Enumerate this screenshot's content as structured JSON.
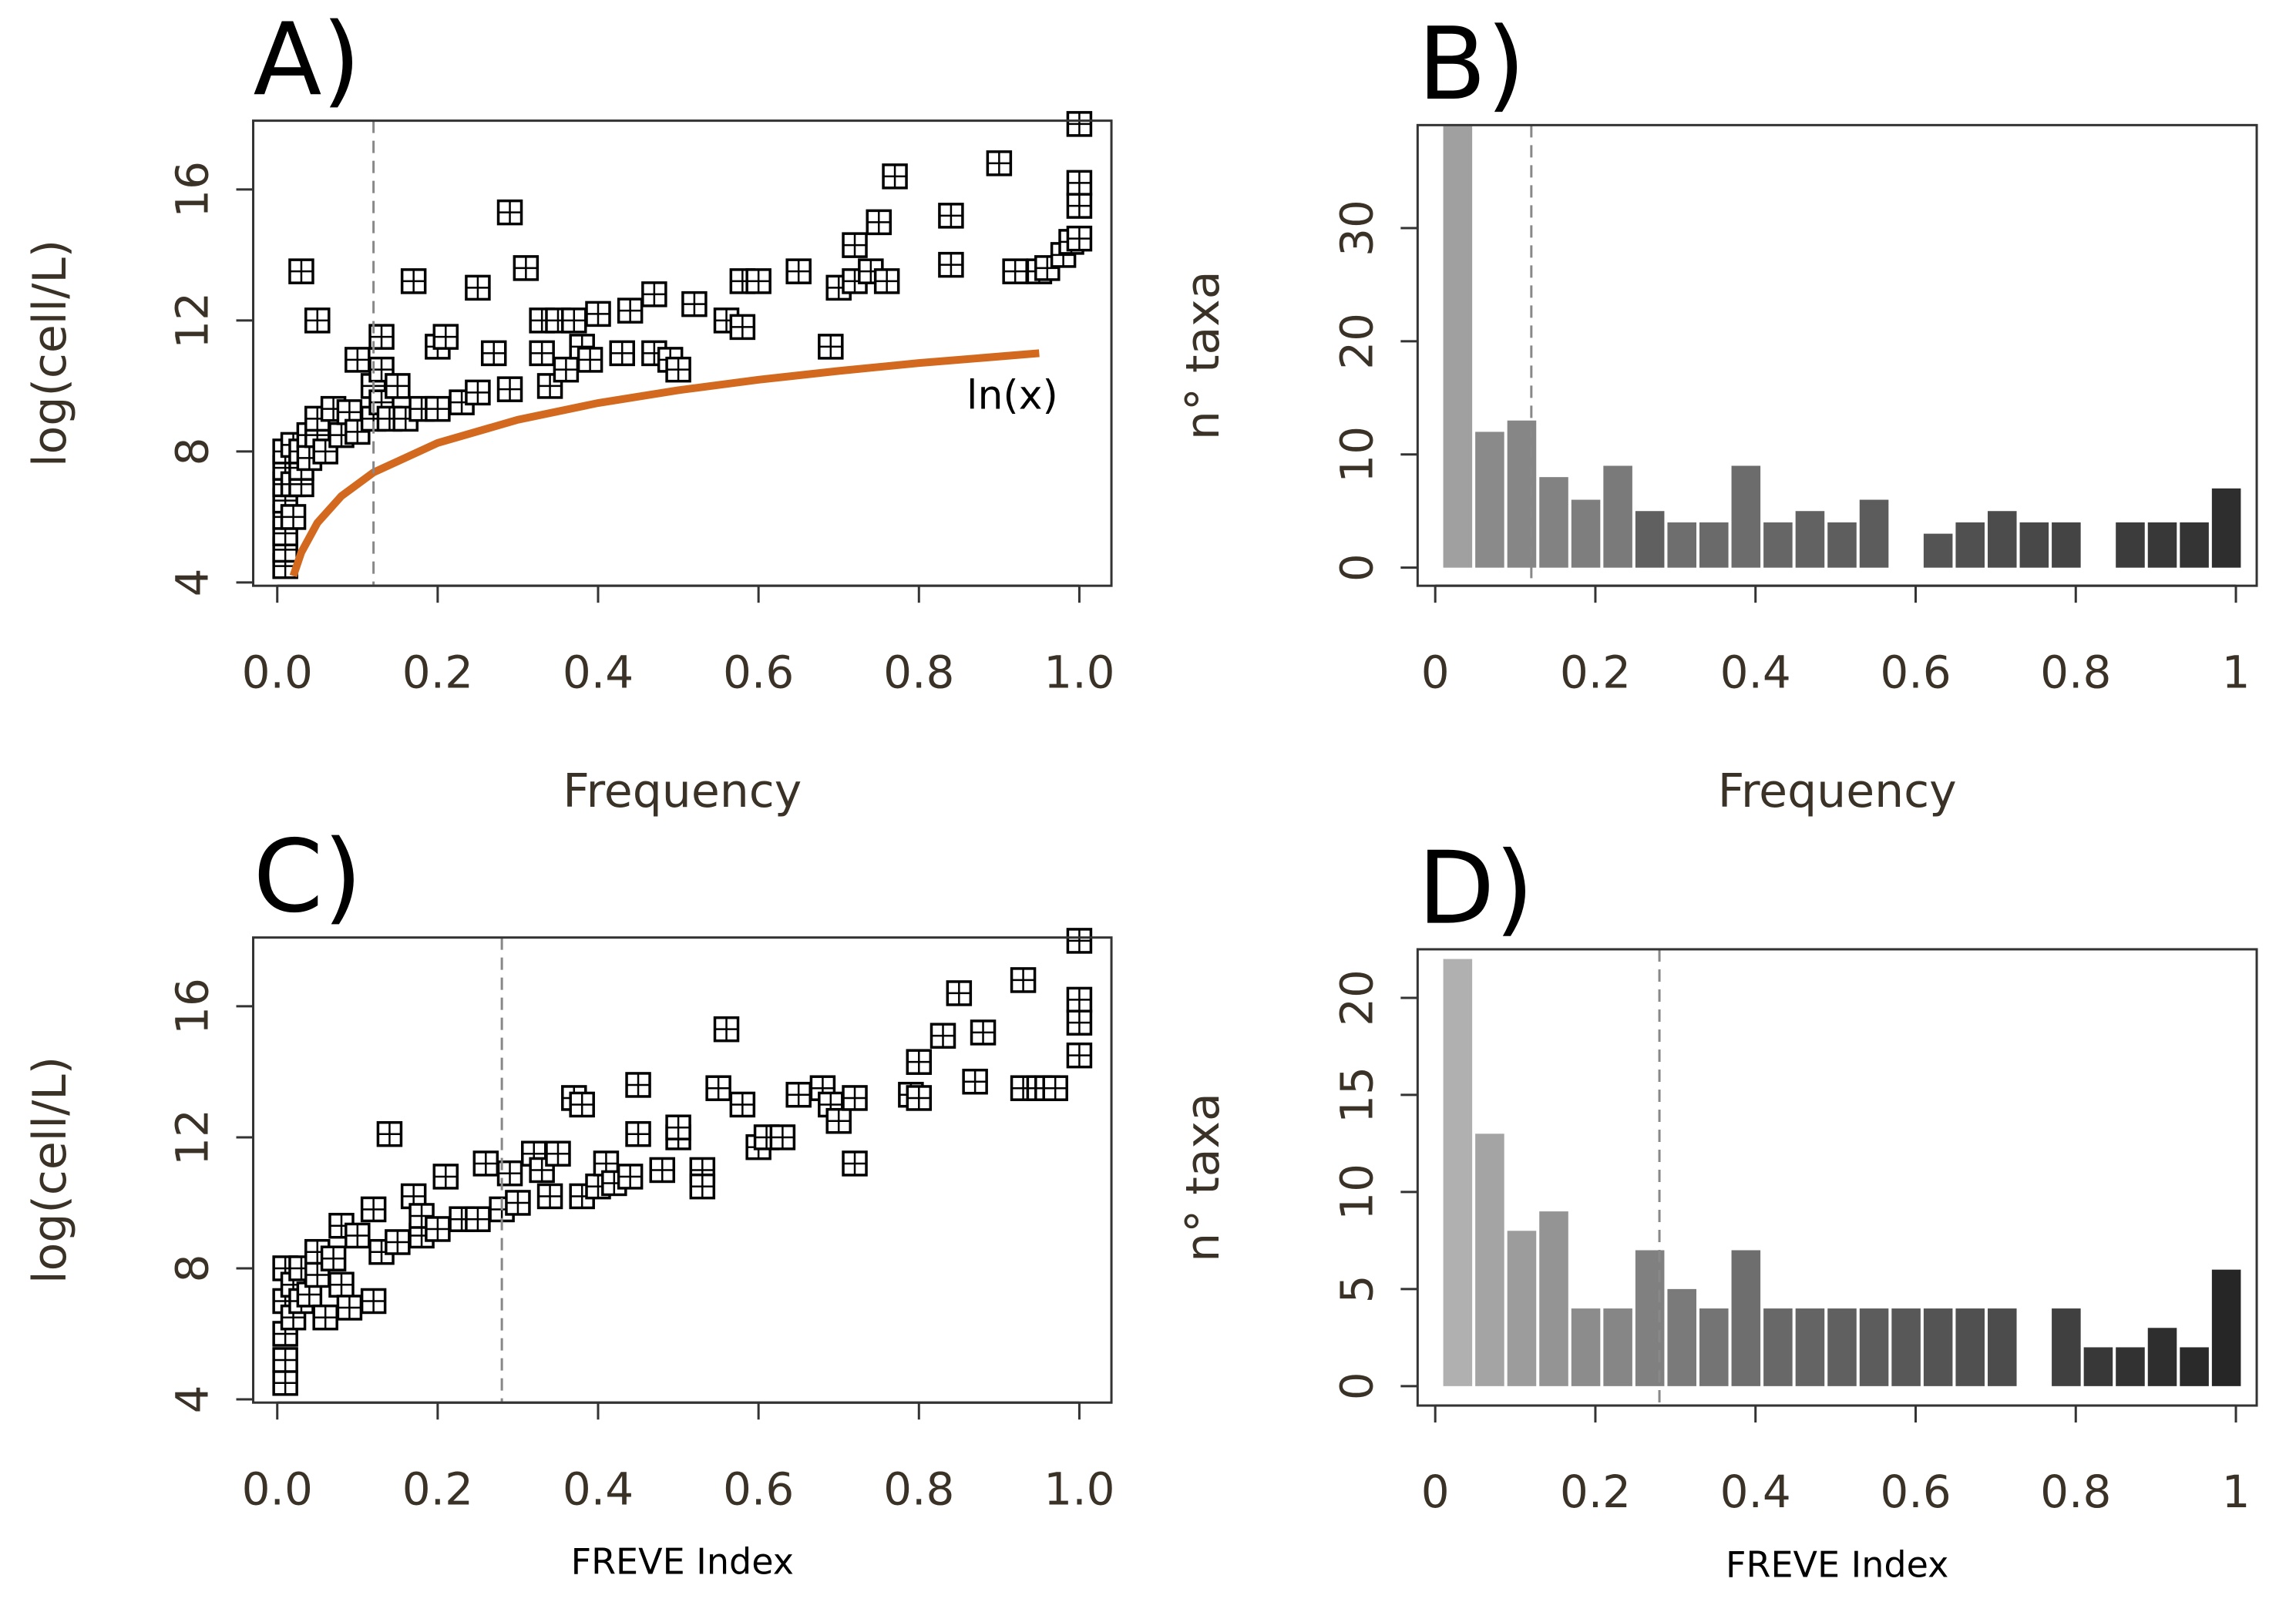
{
  "chart_data": [
    {
      "type": "scatter",
      "label": "A)",
      "xlabel": "Frequency",
      "ylabel": "log(cell/L)",
      "xlim": [
        -0.03,
        1.04
      ],
      "ylim": [
        3.9,
        18.1
      ],
      "xticks": [
        {
          "value": 0,
          "label": "0.0"
        },
        0.2,
        0.4,
        0.6,
        0.8,
        {
          "value": 1,
          "label": "1.0"
        }
      ],
      "yticks": [
        4,
        8,
        12,
        16
      ],
      "vline": 0.12,
      "color": "#000000",
      "x": [
        0.01,
        0.01,
        0.01,
        0.01,
        0.01,
        0.01,
        0.01,
        0.01,
        0.02,
        0.02,
        0.02,
        0.03,
        0.03,
        0.03,
        0.03,
        0.04,
        0.04,
        0.05,
        0.05,
        0.05,
        0.06,
        0.07,
        0.08,
        0.09,
        0.1,
        0.1,
        0.12,
        0.12,
        0.13,
        0.13,
        0.13,
        0.14,
        0.15,
        0.16,
        0.17,
        0.18,
        0.2,
        0.2,
        0.21,
        0.23,
        0.25,
        0.25,
        0.27,
        0.29,
        0.29,
        0.31,
        0.33,
        0.33,
        0.34,
        0.35,
        0.36,
        0.37,
        0.38,
        0.39,
        0.4,
        0.43,
        0.44,
        0.47,
        0.47,
        0.49,
        0.5,
        0.52,
        0.56,
        0.58,
        0.58,
        0.6,
        0.65,
        0.69,
        0.7,
        0.72,
        0.72,
        0.74,
        0.75,
        0.76,
        0.77,
        0.84,
        0.84,
        0.9,
        0.92,
        0.95,
        0.96,
        0.98,
        0.99,
        1.0,
        1.0,
        1.0,
        1.0
      ],
      "y": [
        4.5,
        5,
        5.5,
        6,
        6.5,
        7,
        7.5,
        8,
        6,
        7,
        8.2,
        7,
        7.5,
        8,
        13.5,
        8.5,
        7.8,
        8.5,
        9,
        12,
        8,
        9.3,
        8.5,
        9.2,
        8.6,
        10.8,
        9,
        10,
        11.5,
        10.5,
        9.5,
        9,
        10,
        9,
        13.2,
        9.3,
        9.3,
        11.2,
        11.5,
        9.5,
        9.8,
        13,
        11,
        15.3,
        9.9,
        13.6,
        12,
        11,
        10,
        12,
        10.5,
        12,
        11.2,
        10.8,
        12.2,
        11,
        12.3,
        12.8,
        11,
        10.8,
        10.5,
        12.5,
        12,
        13.2,
        11.8,
        13.2,
        13.5,
        11.2,
        13,
        14.3,
        13.2,
        13.5,
        15,
        13.2,
        16.4,
        13.7,
        15.2,
        16.8,
        13.5,
        13.5,
        13.6,
        14,
        14.4,
        18,
        16.2,
        15.5,
        14.5
      ],
      "line": {
        "color": "#d2691e",
        "annotation": "ln(x)",
        "x": [
          0.02,
          0.03,
          0.05,
          0.08,
          0.12,
          0.2,
          0.3,
          0.4,
          0.5,
          0.6,
          0.7,
          0.8,
          0.95
        ],
        "y": [
          4.2,
          4.92,
          5.82,
          6.64,
          7.36,
          8.26,
          8.97,
          9.48,
          9.87,
          10.19,
          10.46,
          10.7,
          11.0
        ]
      }
    },
    {
      "type": "histogram",
      "label": "B)",
      "xlabel": "Frequency",
      "ylabel": "n° taxa",
      "xlim": [
        -0.022,
        1.026
      ],
      "ylim": [
        -1.6,
        39.1
      ],
      "xticks": [
        0,
        0.2,
        0.4,
        0.6,
        0.8,
        1
      ],
      "yticks": [
        0,
        10,
        20,
        30
      ],
      "vline": 0.12,
      "bins": [
        0.01,
        0.05,
        0.09,
        0.13,
        0.17,
        0.21,
        0.25,
        0.29,
        0.33,
        0.37,
        0.41,
        0.45,
        0.49,
        0.53,
        0.57,
        0.61,
        0.65,
        0.69,
        0.73,
        0.77,
        0.81,
        0.85,
        0.89,
        0.93,
        0.97,
        1.01
      ],
      "counts": [
        39,
        12,
        13,
        8,
        6,
        9,
        5,
        4,
        4,
        9,
        4,
        5,
        4,
        6,
        0,
        3,
        4,
        5,
        4,
        4,
        0,
        4,
        4,
        4,
        7
      ],
      "colors": [
        "#a0a0a0",
        "#8a8a8a",
        "#868686",
        "#828282",
        "#7e7e7e",
        "#7a7a7a",
        "#606060",
        "#6e6e6e",
        "#6a6a6a",
        "#6c6c6c",
        "#666666",
        "#626262",
        "#5e5e5e",
        "#5c5c5c",
        "#585858",
        "#545454",
        "#505050",
        "#4c4c4c",
        "#484848",
        "#444444",
        "#404040",
        "#3c3c3c",
        "#383838",
        "#343434",
        "#2e2e2e"
      ]
    },
    {
      "type": "scatter",
      "label": "C)",
      "xlabel": "FREVE Index",
      "ylabel": "log(cell/L)",
      "xlim": [
        -0.03,
        1.04
      ],
      "ylim": [
        3.9,
        18.1
      ],
      "xticks": [
        {
          "value": 0,
          "label": "0.0"
        },
        0.2,
        0.4,
        0.6,
        0.8,
        {
          "value": 1,
          "label": "1.0"
        }
      ],
      "yticks": [
        4,
        8,
        12,
        16
      ],
      "vline": 0.28,
      "color": "#000000",
      "x": [
        0.01,
        0.01,
        0.01,
        0.01,
        0.01,
        0.02,
        0.02,
        0.03,
        0.03,
        0.04,
        0.05,
        0.05,
        0.06,
        0.07,
        0.08,
        0.08,
        0.09,
        0.1,
        0.12,
        0.12,
        0.13,
        0.14,
        0.15,
        0.17,
        0.18,
        0.18,
        0.2,
        0.21,
        0.23,
        0.25,
        0.26,
        0.28,
        0.29,
        0.3,
        0.32,
        0.33,
        0.34,
        0.35,
        0.37,
        0.38,
        0.38,
        0.4,
        0.41,
        0.42,
        0.44,
        0.45,
        0.45,
        0.48,
        0.5,
        0.5,
        0.53,
        0.53,
        0.55,
        0.56,
        0.58,
        0.6,
        0.61,
        0.63,
        0.65,
        0.68,
        0.69,
        0.7,
        0.72,
        0.72,
        0.79,
        0.8,
        0.8,
        0.83,
        0.85,
        0.87,
        0.88,
        0.93,
        0.93,
        0.95,
        0.96,
        0.97,
        1.0,
        1.0,
        1.0,
        1.0
      ],
      "y": [
        4.5,
        5.2,
        6,
        7,
        8,
        6.5,
        7.5,
        7,
        8,
        7.2,
        8.5,
        7.8,
        6.5,
        8.3,
        7.5,
        9.3,
        6.8,
        9,
        7,
        9.8,
        8.5,
        12.1,
        8.8,
        10.2,
        9,
        9.6,
        9.2,
        10.8,
        9.5,
        9.5,
        11.2,
        9.8,
        10.9,
        10,
        11.5,
        11,
        10.2,
        11.5,
        13.2,
        13,
        10.2,
        10.5,
        11.2,
        10.6,
        10.8,
        12.1,
        13.6,
        11,
        12,
        12.3,
        11,
        10.5,
        13.5,
        15.3,
        13,
        11.7,
        12,
        12,
        13.3,
        13.5,
        13,
        12.5,
        11.2,
        13.2,
        13.3,
        14.3,
        13.2,
        15.1,
        16.4,
        13.7,
        15.2,
        16.8,
        13.5,
        13.5,
        13.5,
        13.5,
        18,
        16.2,
        15.5,
        14.5
      ]
    },
    {
      "type": "histogram",
      "label": "D)",
      "xlabel": "FREVE Index",
      "ylabel": "n° taxa",
      "xlim": [
        -0.022,
        1.026
      ],
      "ylim": [
        -1,
        22.5
      ],
      "xticks": [
        0,
        0.2,
        0.4,
        0.6,
        0.8,
        1
      ],
      "yticks": [
        0,
        5,
        10,
        15,
        20
      ],
      "vline": 0.28,
      "bins": [
        0.01,
        0.05,
        0.09,
        0.13,
        0.17,
        0.21,
        0.25,
        0.29,
        0.33,
        0.37,
        0.41,
        0.45,
        0.49,
        0.53,
        0.57,
        0.61,
        0.65,
        0.69,
        0.73,
        0.77,
        0.81,
        0.85,
        0.89,
        0.93,
        0.97,
        1.01
      ],
      "counts": [
        22,
        13,
        8,
        9,
        4,
        4,
        7,
        5,
        4,
        7,
        4,
        4,
        4,
        4,
        4,
        4,
        4,
        4,
        0,
        4,
        2,
        2,
        3,
        2,
        6
      ],
      "colors": [
        "#b0b0b0",
        "#a4a4a4",
        "#9c9c9c",
        "#949494",
        "#8c8c8c",
        "#868686",
        "#808080",
        "#7a7a7a",
        "#747474",
        "#6e6e6e",
        "#686868",
        "#646464",
        "#606060",
        "#5c5c5c",
        "#585858",
        "#545454",
        "#505050",
        "#4c4c4c",
        "#484848",
        "#404040",
        "#383838",
        "#323232",
        "#2e2e2e",
        "#2a2a2a",
        "#262626"
      ]
    }
  ]
}
